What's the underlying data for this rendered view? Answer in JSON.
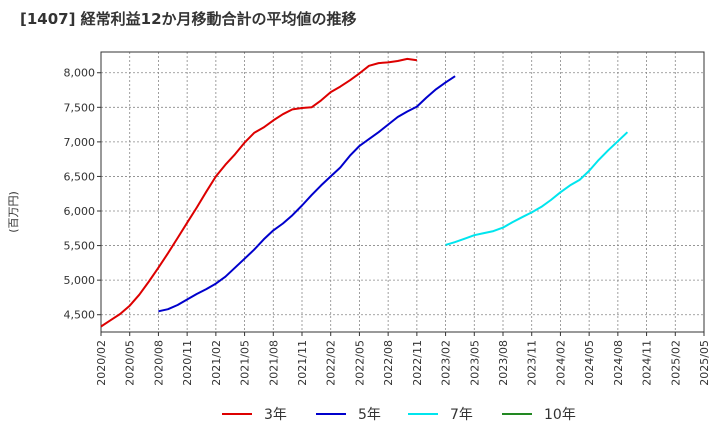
{
  "chart_data": {
    "type": "line",
    "title": "[1407]  経常利益12か月移動合計の平均値の推移",
    "ylabel": "(百万円)",
    "xlabel": "",
    "ylim": [
      4250,
      8300
    ],
    "yticks": [
      4500,
      5000,
      5500,
      6000,
      6500,
      7000,
      7500,
      8000
    ],
    "ytick_labels": [
      "4,500",
      "5,000",
      "5,500",
      "6,000",
      "6,500",
      "7,000",
      "7,500",
      "8,000"
    ],
    "xtick_labels": [
      "2020/02",
      "2020/05",
      "2020/08",
      "2020/11",
      "2021/02",
      "2021/05",
      "2021/08",
      "2021/11",
      "2022/02",
      "2022/05",
      "2022/08",
      "2022/11",
      "2023/02",
      "2023/05",
      "2023/08",
      "2023/11",
      "2024/02",
      "2024/05",
      "2024/08",
      "2024/11",
      "2025/02",
      "2025/05"
    ],
    "grid": true,
    "legend_position": "bottom",
    "series": [
      {
        "name": "3年",
        "color": "#dd0000",
        "start_index": 0,
        "values": [
          4330,
          4420,
          4510,
          4630,
          4790,
          4980,
          5180,
          5390,
          5610,
          5830,
          6050,
          6280,
          6500,
          6670,
          6820,
          6990,
          7130,
          7210,
          7310,
          7400,
          7470,
          7490,
          7500,
          7600,
          7720,
          7800,
          7890,
          7990,
          8100,
          8140,
          8150,
          8170,
          8200,
          8180
        ]
      },
      {
        "name": "5年",
        "color": "#0000cc",
        "start_index": 6,
        "values": [
          4550,
          4580,
          4640,
          4720,
          4800,
          4870,
          4950,
          5050,
          5180,
          5310,
          5440,
          5590,
          5720,
          5820,
          5940,
          6080,
          6230,
          6370,
          6500,
          6630,
          6800,
          6940,
          7040,
          7140,
          7250,
          7360,
          7440,
          7510,
          7640,
          7760,
          7860,
          7950
        ]
      },
      {
        "name": "7年",
        "color": "#00e5ee",
        "start_index": 36,
        "values": [
          5510,
          5550,
          5600,
          5650,
          5680,
          5710,
          5760,
          5840,
          5910,
          5980,
          6060,
          6160,
          6270,
          6370,
          6450,
          6580,
          6740,
          6880,
          7010,
          7140
        ]
      },
      {
        "name": "10年",
        "color": "#228822",
        "start_index": 0,
        "values": []
      }
    ]
  }
}
